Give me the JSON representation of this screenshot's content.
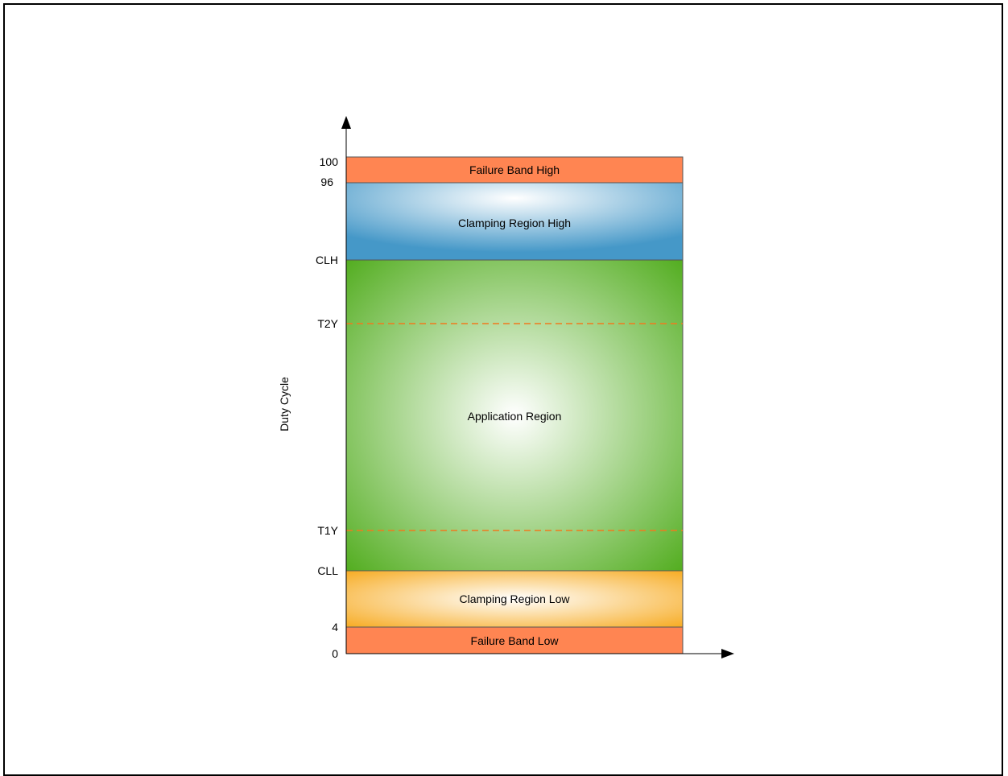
{
  "diagram": {
    "y_axis_label": "Duty Cycle",
    "regions": [
      {
        "id": "failure_high",
        "label": "Failure Band High",
        "color": "#FF8552"
      },
      {
        "id": "clamp_high",
        "label": "Clamping Region High",
        "color": "#4A9CCB"
      },
      {
        "id": "application",
        "label": "Application Region",
        "color": "#4BAB16"
      },
      {
        "id": "clamp_low",
        "label": "Clamping Region Low",
        "color": "#F9B636"
      },
      {
        "id": "failure_low",
        "label": "Failure Band Low",
        "color": "#FF8552"
      }
    ],
    "ticks": {
      "t100": "100",
      "t96": "96",
      "clh": "CLH",
      "t2y": "T2Y",
      "t1y": "T1Y",
      "cll": "CLL",
      "t4": "4",
      "t0": "0"
    },
    "threshold_line_color": "#F07A1E"
  }
}
